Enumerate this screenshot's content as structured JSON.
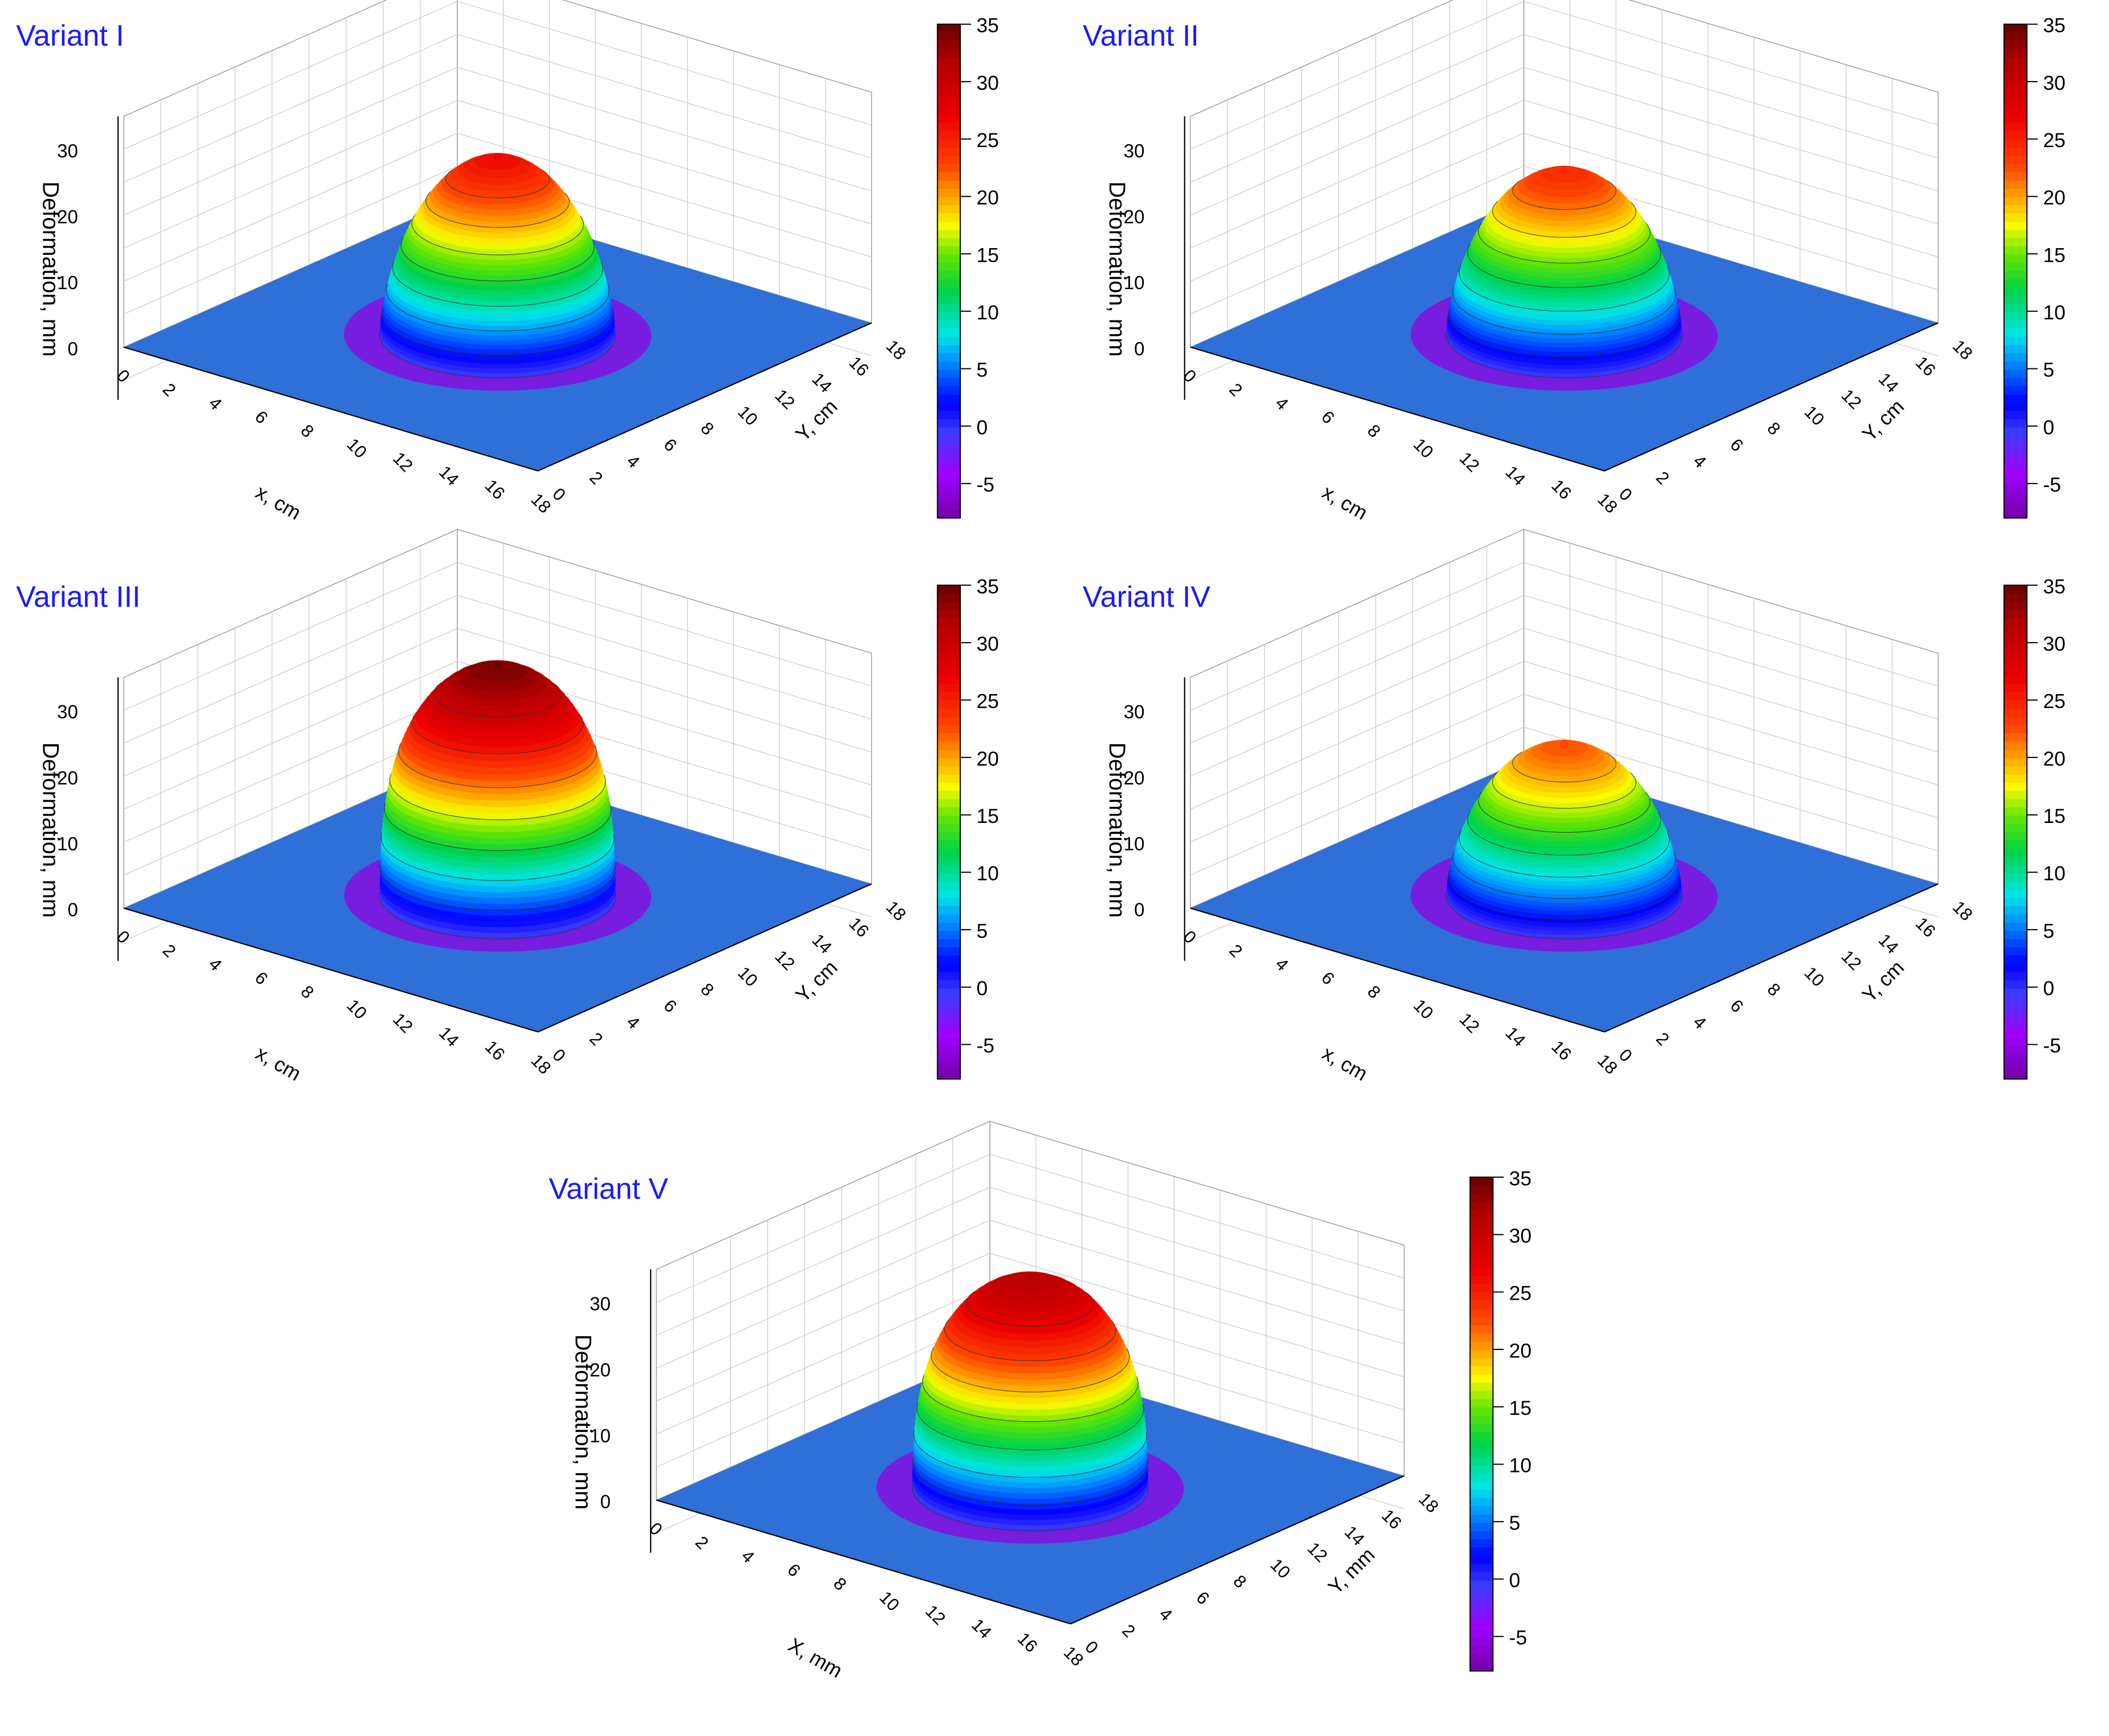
{
  "figure": {
    "accent_title": "#1a1aff",
    "axis_color": "#000000",
    "grid_color": "#c8c8c8"
  },
  "charts": [
    {
      "title": "Variant I",
      "xlabel": "x, cm",
      "ylabel": "Y, cm",
      "zlabel": "Deformation, mm",
      "peak_label": "",
      "ridge": "smooth"
    },
    {
      "title": "Variant II",
      "xlabel": "x, cm",
      "ylabel": "Y, cm",
      "zlabel": "Deformation, mm",
      "peak_label": "",
      "ridge": "smooth"
    },
    {
      "title": "Variant III",
      "xlabel": "x, cm",
      "ylabel": "Y, cm",
      "zlabel": "Deformation, mm",
      "peak_label": "",
      "ridge": "rough"
    },
    {
      "title": "Variant IV",
      "xlabel": "x, cm",
      "ylabel": "Y, cm",
      "zlabel": "Deformation, mm",
      "peak_label": "",
      "ridge": "smooth"
    },
    {
      "title": "Variant V",
      "xlabel": "X, mm",
      "ylabel": "Y, mm",
      "zlabel": "Deformation, mm",
      "peak_label": "",
      "ridge": "rough"
    }
  ],
  "chart_data": [
    {
      "type": "surface3d",
      "title": "Variant I",
      "xlabel": "x, cm",
      "ylabel": "Y, cm",
      "zlabel": "Deformation, mm",
      "x_ticks": [
        0,
        2,
        4,
        6,
        8,
        10,
        12,
        14,
        16,
        18
      ],
      "y_ticks": [
        0,
        2,
        4,
        6,
        8,
        10,
        12,
        14,
        16,
        18
      ],
      "z_ticks": [
        0,
        10,
        20,
        30
      ],
      "xlim": [
        0,
        18
      ],
      "ylim": [
        0,
        18
      ],
      "zlim": [
        -8,
        35
      ],
      "peak_deformation": 27,
      "peak_center": [
        9,
        9
      ],
      "min_deformation": -5,
      "colorbar": {
        "ticks": [
          35,
          30,
          25,
          20,
          15,
          10,
          5,
          0,
          -5
        ],
        "range": [
          -8,
          35
        ]
      }
    },
    {
      "type": "surface3d",
      "title": "Variant II",
      "xlabel": "x, cm",
      "ylabel": "Y, cm",
      "zlabel": "Deformation, mm",
      "x_ticks": [
        0,
        2,
        4,
        6,
        8,
        10,
        12,
        14,
        16,
        18
      ],
      "y_ticks": [
        0,
        2,
        4,
        6,
        8,
        10,
        12,
        14,
        16,
        18
      ],
      "z_ticks": [
        0,
        10,
        20,
        30
      ],
      "xlim": [
        0,
        18
      ],
      "ylim": [
        0,
        18
      ],
      "zlim": [
        -8,
        35
      ],
      "peak_deformation": 25,
      "peak_center": [
        9,
        9
      ],
      "min_deformation": -5,
      "colorbar": {
        "ticks": [
          35,
          30,
          25,
          20,
          15,
          10,
          5,
          0,
          -5
        ],
        "range": [
          -8,
          35
        ]
      }
    },
    {
      "type": "surface3d",
      "title": "Variant III",
      "xlabel": "x, cm",
      "ylabel": "Y, cm",
      "zlabel": "Deformation, mm",
      "x_ticks": [
        0,
        2,
        4,
        6,
        8,
        10,
        12,
        14,
        16,
        18
      ],
      "y_ticks": [
        0,
        2,
        4,
        6,
        8,
        10,
        12,
        14,
        16,
        18
      ],
      "z_ticks": [
        0,
        10,
        20,
        30
      ],
      "xlim": [
        0,
        18
      ],
      "ylim": [
        0,
        18
      ],
      "zlim": [
        -8,
        35
      ],
      "peak_deformation": 35,
      "peak_center": [
        9,
        9
      ],
      "min_deformation": -5,
      "colorbar": {
        "ticks": [
          35,
          30,
          25,
          20,
          15,
          10,
          5,
          0,
          -5
        ],
        "range": [
          -8,
          35
        ]
      }
    },
    {
      "type": "surface3d",
      "title": "Variant IV",
      "xlabel": "x, cm",
      "ylabel": "Y, cm",
      "zlabel": "Deformation, mm",
      "x_ticks": [
        0,
        2,
        4,
        6,
        8,
        10,
        12,
        14,
        16,
        18
      ],
      "y_ticks": [
        0,
        2,
        4,
        6,
        8,
        10,
        12,
        14,
        16,
        18
      ],
      "z_ticks": [
        0,
        10,
        20,
        30
      ],
      "xlim": [
        0,
        18
      ],
      "ylim": [
        0,
        18
      ],
      "zlim": [
        -8,
        35
      ],
      "peak_deformation": 23,
      "peak_center": [
        9,
        9
      ],
      "min_deformation": -5,
      "colorbar": {
        "ticks": [
          35,
          30,
          25,
          20,
          15,
          10,
          5,
          0,
          -5
        ],
        "range": [
          -8,
          35
        ]
      }
    },
    {
      "type": "surface3d",
      "title": "Variant V",
      "xlabel": "X, mm",
      "ylabel": "Y, mm",
      "zlabel": "Deformation, mm",
      "x_ticks": [
        0,
        2,
        4,
        6,
        8,
        10,
        12,
        14,
        16,
        18
      ],
      "y_ticks": [
        0,
        2,
        4,
        6,
        8,
        10,
        12,
        14,
        16,
        18
      ],
      "z_ticks": [
        0,
        10,
        20,
        30
      ],
      "xlim": [
        0,
        18
      ],
      "ylim": [
        0,
        18
      ],
      "zlim": [
        -8,
        35
      ],
      "peak_deformation": 32,
      "peak_center": [
        9,
        9
      ],
      "min_deformation": -5,
      "colorbar": {
        "ticks": [
          35,
          30,
          25,
          20,
          15,
          10,
          5,
          0,
          -5
        ],
        "range": [
          -8,
          35
        ]
      }
    }
  ]
}
